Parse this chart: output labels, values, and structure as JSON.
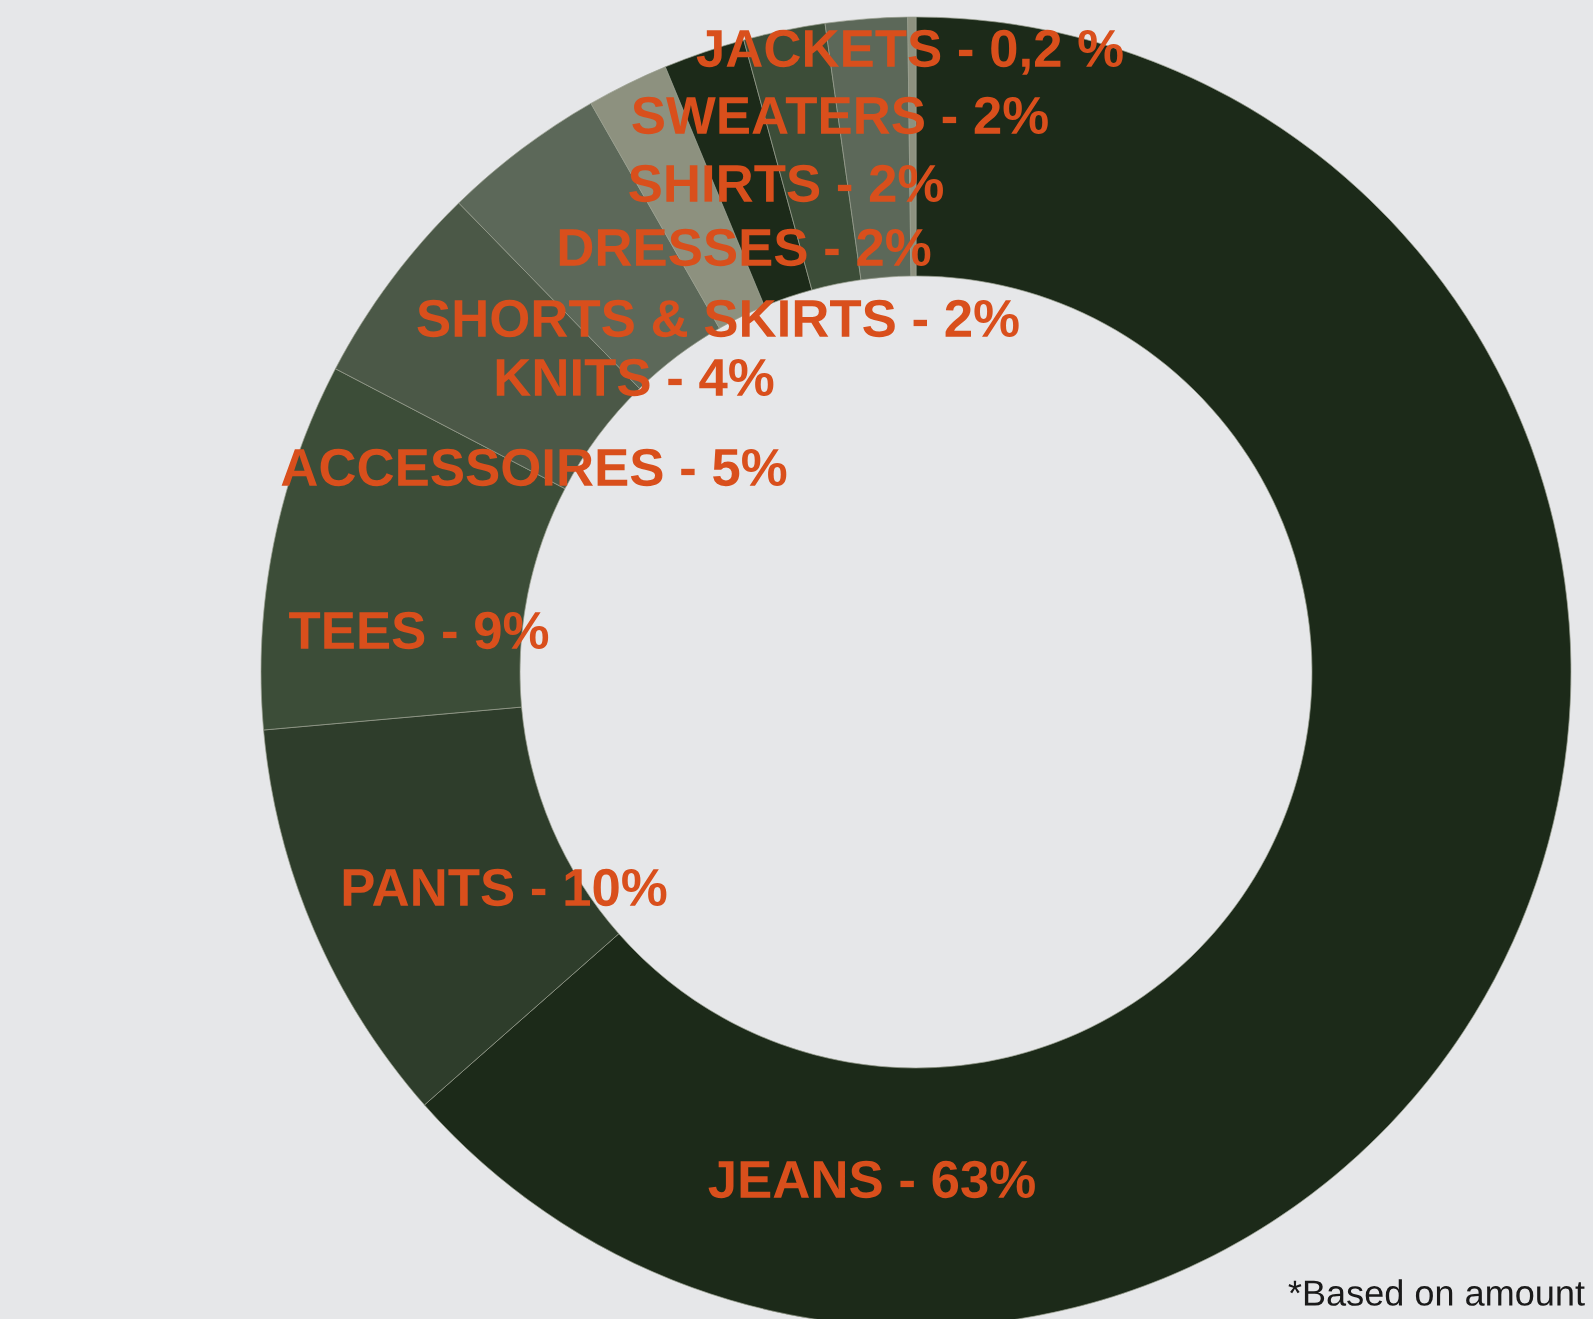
{
  "chart_data": {
    "type": "donut",
    "categories": [
      "JEANS",
      "PANTS",
      "TEES",
      "ACCESSOIRES",
      "KNITS",
      "SHORTS & SKIRTS",
      "DRESSES",
      "SHIRTS",
      "SWEATERS",
      "JACKETS"
    ],
    "values": [
      63,
      10,
      9,
      5,
      4,
      2,
      2,
      2,
      2,
      0.2
    ],
    "value_labels": [
      "63%",
      "10%",
      "9%",
      "5%",
      "4%",
      "2%",
      "2%",
      "2%",
      "2%",
      "0,2 %"
    ],
    "colors": [
      "#1c2a19",
      "#2e3d2b",
      "#3c4d38",
      "#4b5847",
      "#5c6859",
      "#8d917f",
      "#1c2a19",
      "#3c4d38",
      "#5c6859",
      "#8d917f"
    ],
    "legend": false,
    "annotations": [
      "*Based on amount"
    ]
  }
}
